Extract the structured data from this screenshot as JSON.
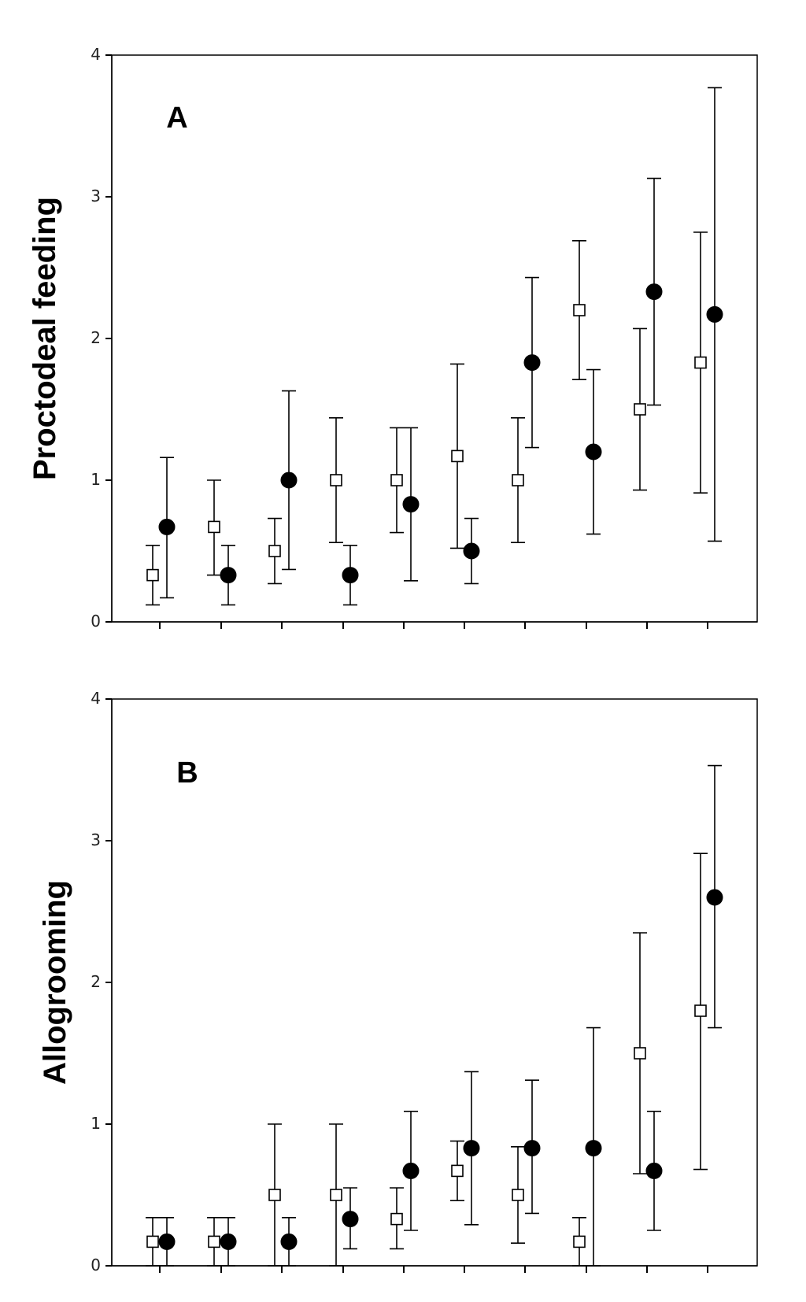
{
  "chart_data": [
    {
      "type": "scatter",
      "panel_label": "A",
      "title": "",
      "xlabel": "",
      "ylabel": "Proctodeal feeding",
      "ylim": [
        0,
        4
      ],
      "yticks": [
        "0",
        "1",
        "2",
        "3",
        "4"
      ],
      "x_positions": [
        1,
        2,
        3,
        4,
        5,
        6,
        7,
        8,
        9,
        10
      ],
      "series": [
        {
          "marker": "open-square",
          "values": [
            0.33,
            0.67,
            0.5,
            1.0,
            1.0,
            1.17,
            1.0,
            2.2,
            1.5,
            1.83
          ],
          "lower": [
            0.12,
            0.33,
            0.27,
            0.56,
            0.63,
            0.52,
            0.56,
            1.71,
            0.93,
            0.91
          ],
          "upper": [
            0.54,
            1.0,
            0.73,
            1.44,
            1.37,
            1.82,
            1.44,
            2.69,
            2.07,
            2.75
          ]
        },
        {
          "marker": "filled-circle",
          "values": [
            0.67,
            0.33,
            1.0,
            0.33,
            0.83,
            0.5,
            1.83,
            1.2,
            2.33,
            2.17
          ],
          "lower": [
            0.17,
            0.12,
            0.37,
            0.12,
            0.29,
            0.27,
            1.23,
            0.62,
            1.53,
            0.57
          ],
          "upper": [
            1.16,
            0.54,
            1.63,
            0.54,
            1.37,
            0.73,
            2.43,
            1.78,
            3.13,
            3.77
          ]
        }
      ],
      "grid": false,
      "legend": "none"
    },
    {
      "type": "scatter",
      "panel_label": "B",
      "title": "",
      "xlabel": "",
      "ylabel": "Allogrooming",
      "ylim": [
        0,
        4
      ],
      "yticks": [
        "0",
        "1",
        "2",
        "3",
        "4"
      ],
      "x_positions": [
        1,
        2,
        3,
        4,
        5,
        6,
        7,
        8,
        9,
        10
      ],
      "series": [
        {
          "marker": "open-square",
          "values": [
            0.17,
            0.17,
            0.5,
            0.5,
            0.33,
            0.67,
            0.5,
            0.17,
            1.5,
            1.8
          ],
          "lower": [
            0.0,
            0.0,
            0.0,
            0.0,
            0.12,
            0.46,
            0.16,
            0.0,
            0.65,
            0.68
          ],
          "upper": [
            0.34,
            0.34,
            1.0,
            1.0,
            0.55,
            0.88,
            0.84,
            0.34,
            2.35,
            2.91
          ]
        },
        {
          "marker": "filled-circle",
          "values": [
            0.17,
            0.17,
            0.17,
            0.33,
            0.67,
            0.83,
            0.83,
            0.83,
            0.67,
            2.6
          ],
          "lower": [
            0.0,
            0.0,
            0.0,
            0.12,
            0.25,
            0.29,
            0.37,
            0.0,
            0.25,
            1.68
          ],
          "upper": [
            0.34,
            0.34,
            0.34,
            0.55,
            1.09,
            1.37,
            1.31,
            1.68,
            1.09,
            3.53
          ]
        }
      ],
      "grid": false,
      "legend": "none"
    }
  ]
}
